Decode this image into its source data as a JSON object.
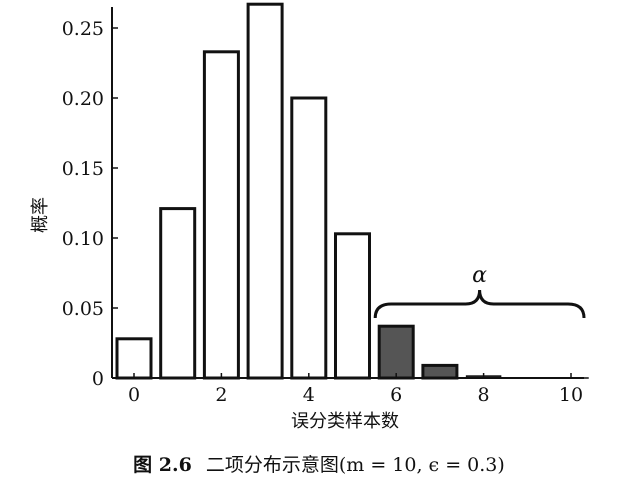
{
  "chart_data": {
    "type": "bar",
    "categories": [
      "0",
      "1",
      "2",
      "3",
      "4",
      "5",
      "6",
      "7",
      "8",
      "9",
      "10"
    ],
    "values": [
      0.028,
      0.121,
      0.233,
      0.267,
      0.2,
      0.103,
      0.037,
      0.009,
      0.0014,
      0.0001,
      5.9e-06
    ],
    "highlight_from": 6,
    "ylabel": "概率",
    "xlabel": "误分类样本数",
    "ylim": [
      0,
      0.265
    ],
    "yticks": [
      0,
      0.05,
      0.1,
      0.15,
      0.2,
      0.25
    ],
    "ytick_labels": [
      "0",
      "0.05",
      "0.10",
      "0.15",
      "0.20",
      "0.25"
    ],
    "xticks": [
      0,
      2,
      4,
      6,
      8,
      10
    ],
    "xtick_labels": [
      "0",
      "2",
      "4",
      "6",
      "8",
      "10"
    ],
    "annotation": {
      "text": "α",
      "spans": [
        6,
        10
      ]
    },
    "colors": {
      "bar_fill": "#ffffff",
      "highlight_fill": "#555555",
      "stroke": "#111111"
    }
  },
  "caption": {
    "figure_label": "图 2.6",
    "text": "二项分布示意图(m = 10, ϵ = 0.3)"
  }
}
